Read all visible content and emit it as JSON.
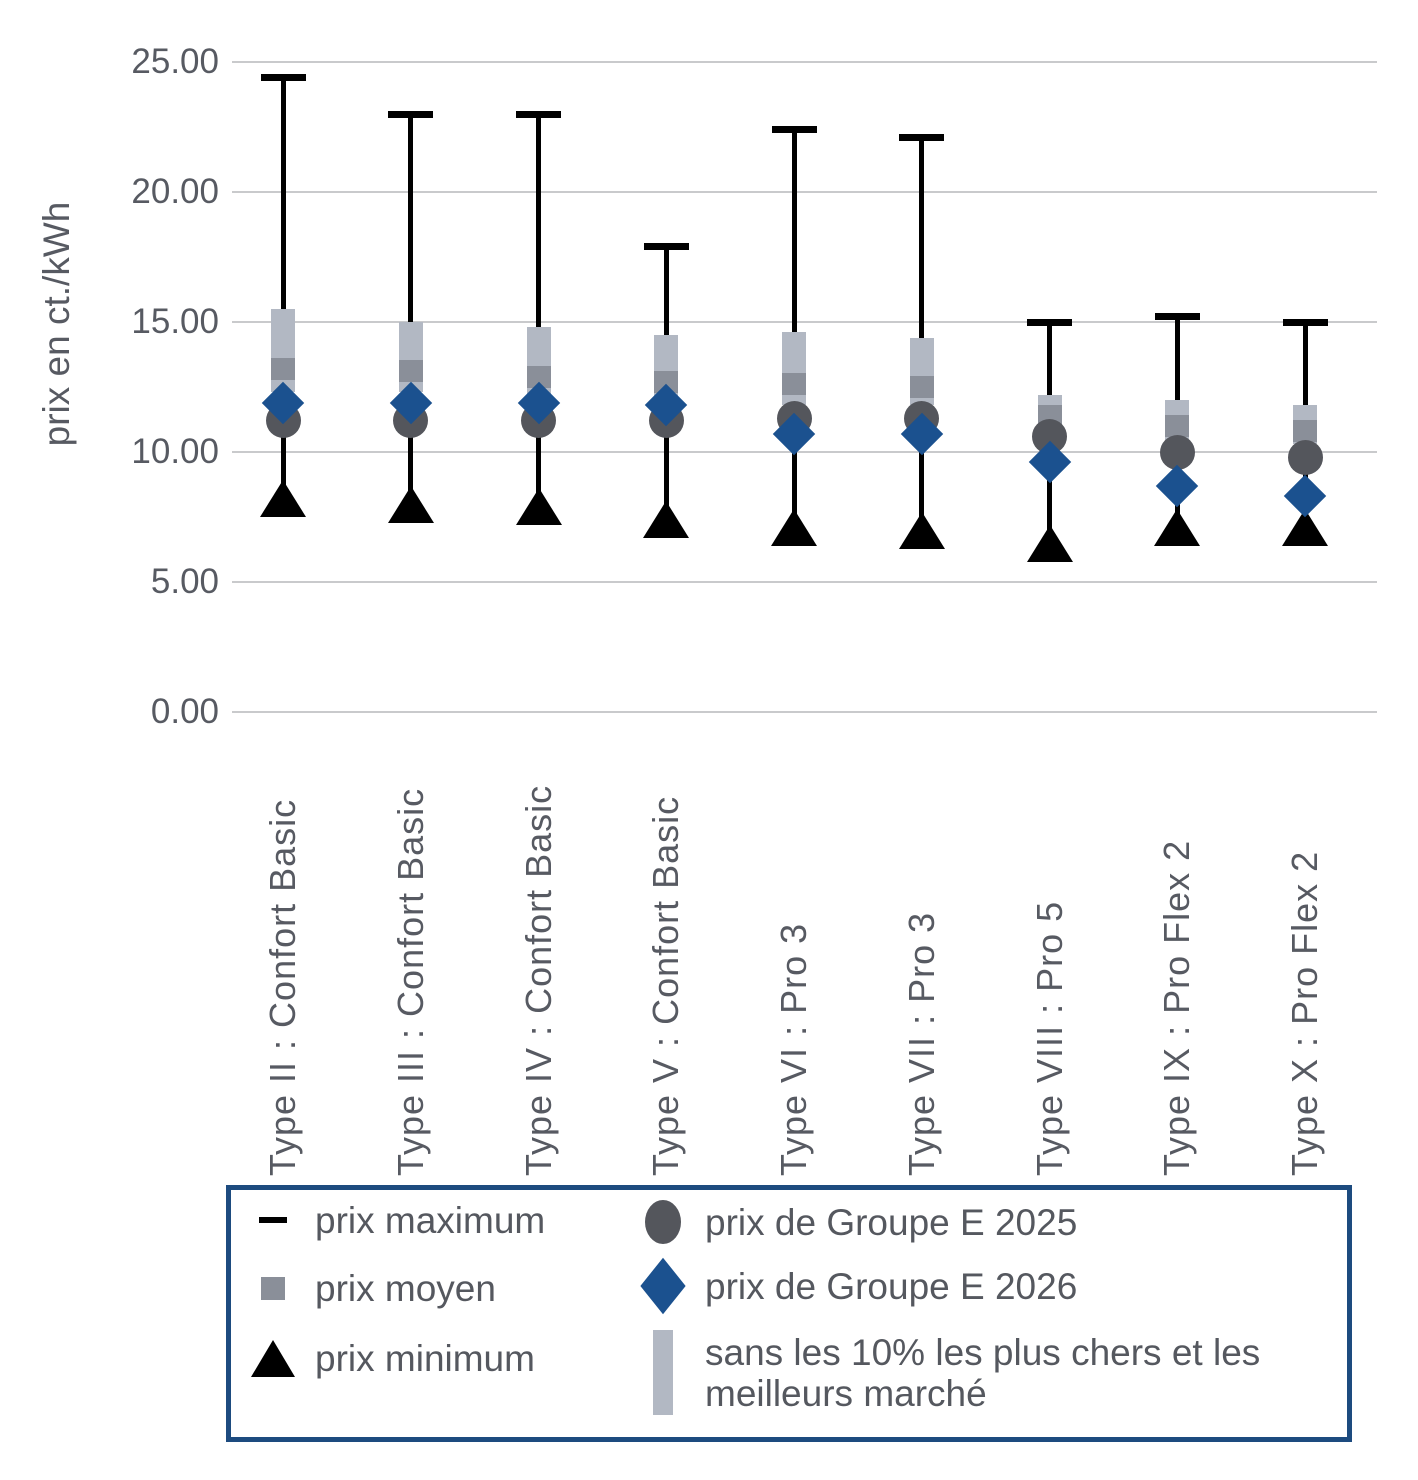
{
  "chart_data": {
    "type": "scatter",
    "subtype": "price-range-markers (boxplot-like)",
    "title": "",
    "ylabel": "prix en ct./kWh",
    "ylim": [
      0,
      25
    ],
    "yticks": [
      25,
      20,
      15,
      10,
      5,
      0
    ],
    "ytick_labels": [
      "25.00",
      "20.00",
      "15.00",
      "10.00",
      "5.00",
      "0.00"
    ],
    "grid": true,
    "legend_position": "bottom",
    "categories": [
      "Type II : Confort Basic",
      "Type III : Confort Basic",
      "Type IV : Confort Basic",
      "Type V : Confort Basic",
      "Type VI : Pro 3",
      "Type VII : Pro 3",
      "Type VIII : Pro 5",
      "Type IX : Pro Flex 2",
      "Type X : Pro Flex 2"
    ],
    "series": [
      {
        "name": "prix maximum",
        "marker": "dash",
        "color": "#000000",
        "values": [
          24.4,
          23.0,
          23.0,
          17.9,
          22.4,
          22.1,
          15.0,
          15.2,
          15.0
        ]
      },
      {
        "name": "sans les 10% les plus chers et les meilleurs marché",
        "marker": "bar",
        "color": "#b2b8c3",
        "high": [
          15.5,
          15.0,
          14.8,
          14.5,
          14.6,
          14.4,
          12.2,
          12.0,
          11.8
        ],
        "low": [
          12.3,
          12.3,
          12.1,
          11.9,
          11.8,
          11.8,
          11.0,
          10.4,
          10.3
        ]
      },
      {
        "name": "prix moyen",
        "marker": "square",
        "color": "#8a8f99",
        "values": [
          13.2,
          13.1,
          12.9,
          12.7,
          12.6,
          12.5,
          11.4,
          11.0,
          10.8
        ]
      },
      {
        "name": "prix de Groupe E 2025",
        "marker": "circle",
        "color": "#54565c",
        "values": [
          11.2,
          11.2,
          11.2,
          11.2,
          11.3,
          11.3,
          10.6,
          10.0,
          9.8
        ]
      },
      {
        "name": "prix de Groupe E 2026",
        "marker": "diamond",
        "color": "#1b518f",
        "values": [
          11.9,
          11.9,
          11.9,
          11.8,
          10.7,
          10.7,
          9.6,
          8.7,
          8.3
        ]
      },
      {
        "name": "prix minimum",
        "marker": "triangle",
        "color": "#000000",
        "values": [
          8.2,
          8.0,
          7.9,
          7.4,
          7.1,
          7.0,
          6.5,
          7.1,
          7.1
        ]
      }
    ]
  },
  "y_axis": {
    "title": "prix en ct./kWh"
  },
  "legend": {
    "border_color": "#1d4b7f",
    "left_items": [
      {
        "marker": "dash",
        "label": "prix maximum"
      },
      {
        "marker": "square",
        "label": "prix moyen"
      },
      {
        "marker": "triangle",
        "label": "prix minimum"
      }
    ],
    "right_items": [
      {
        "marker": "circle",
        "label": "prix de Groupe E 2025"
      },
      {
        "marker": "diamond",
        "label": "prix de Groupe E 2026"
      },
      {
        "marker": "bar",
        "label": "sans les 10% les plus chers et les meilleurs marché"
      }
    ]
  },
  "colors": {
    "accent_blue": "#1b518f",
    "dark_gray": "#54565c",
    "mid_gray": "#8a8f99",
    "light_gray": "#b2b8c3",
    "grid": "#c9cacc",
    "text": "#575a62"
  }
}
